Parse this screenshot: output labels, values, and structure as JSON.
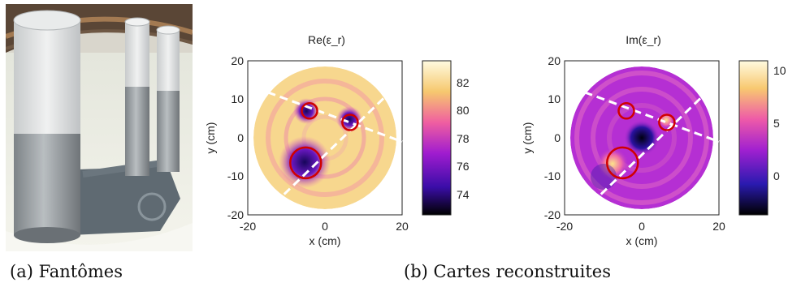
{
  "captions": {
    "a": "(a)  Fantômes",
    "b": "(b)  Cartes reconstruites"
  },
  "panels": [
    {
      "title": "Re(ε_r)",
      "xlabel": "x (cm)",
      "ylabel": "y (cm)",
      "xticks": [
        "-20",
        "0",
        "20"
      ],
      "yticks": [
        "20",
        "10",
        "0",
        "-10",
        "-20"
      ],
      "colorbar_ticks": [
        "82",
        "80",
        "78",
        "76",
        "74"
      ]
    },
    {
      "title": "Im(ε_r)",
      "xlabel": "x (cm)",
      "ylabel": "y (cm)",
      "xticks": [
        "-20",
        "0",
        "20"
      ],
      "yticks": [
        "20",
        "10",
        "0",
        "-10",
        "-20"
      ],
      "colorbar_ticks": [
        "10",
        "5",
        "0"
      ]
    }
  ],
  "chart_data": [
    {
      "type": "heatmap",
      "title": "Re(ε_r)",
      "xlabel": "x (cm)",
      "ylabel": "y (cm)",
      "xlim": [
        -20,
        20
      ],
      "ylim": [
        -20,
        20
      ],
      "colorbar": {
        "range": [
          72.5,
          83.5
        ],
        "ticks": [
          74,
          76,
          78,
          80,
          82
        ]
      },
      "colormap": "hot-pink-to-pale-yellow",
      "circles": [
        {
          "cx": -4,
          "cy": 7,
          "r": 2,
          "color": "#d00000"
        },
        {
          "cx": 6.5,
          "cy": 4,
          "r": 2,
          "color": "#d00000"
        },
        {
          "cx": -5,
          "cy": -6.5,
          "r": 4,
          "color": "#d00000"
        }
      ],
      "dashed_lines": [
        {
          "x": [
            -18,
            20
          ],
          "y": [
            13,
            -1
          ]
        },
        {
          "x": [
            -13,
            17
          ],
          "y": [
            -17,
            12
          ]
        }
      ]
    },
    {
      "type": "heatmap",
      "title": "Im(ε_r)",
      "xlabel": "x (cm)",
      "ylabel": "y (cm)",
      "xlim": [
        -20,
        20
      ],
      "ylim": [
        -20,
        20
      ],
      "colorbar": {
        "range": [
          -3.5,
          11
        ],
        "ticks": [
          0,
          5,
          10
        ]
      },
      "colormap": "black-blue-magenta-yellow",
      "circles": [
        {
          "cx": -4,
          "cy": 7,
          "r": 2,
          "color": "#d00000"
        },
        {
          "cx": 6.5,
          "cy": 4,
          "r": 2,
          "color": "#d00000"
        },
        {
          "cx": -5,
          "cy": -6.5,
          "r": 4,
          "color": "#d00000"
        }
      ],
      "dashed_lines": [
        {
          "x": [
            -18,
            20
          ],
          "y": [
            13,
            -1
          ]
        },
        {
          "x": [
            -13,
            17
          ],
          "y": [
            -17,
            12
          ]
        }
      ]
    }
  ],
  "colors": {
    "circle": "#d00000",
    "dashed": "#ffffff",
    "bucket": "#efefe6",
    "tube": "#9aa0a4"
  }
}
